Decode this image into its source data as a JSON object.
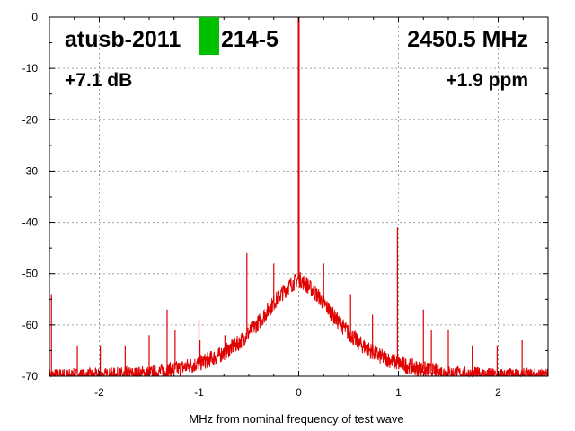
{
  "chart_data": {
    "type": "line",
    "xlabel": "MHz from nominal frequency of test wave",
    "ylabel": "",
    "xlim": [
      -2.5,
      2.5
    ],
    "ylim": [
      -70,
      0
    ],
    "x_ticks": [
      -2,
      -1,
      0,
      1,
      2
    ],
    "x_tick_labels": [
      "-2",
      "-1",
      "0",
      "1",
      "2"
    ],
    "y_ticks": [
      0,
      -10,
      -20,
      -30,
      -40,
      -50,
      -60,
      -70
    ],
    "y_tick_labels": [
      "0",
      "-10",
      "-20",
      "-30",
      "-40",
      "-50",
      "-60",
      "-70"
    ],
    "grid": true,
    "series_color": "#e00000",
    "marker_color": "#00c000",
    "annotations": {
      "device": "atusb-2011",
      "device_suffix": "214-5",
      "frequency": "2450.5 MHz",
      "gain": "+7.1 dB",
      "offset": "+1.9 ppm"
    },
    "series": [
      {
        "noise_floor": {
          "x": [
            -2.5,
            -2.0,
            -1.5,
            -1.2,
            -1.0,
            -0.8,
            -0.6,
            -0.4,
            -0.2,
            -0.1,
            0.0,
            0.1,
            0.2,
            0.4,
            0.6,
            0.8,
            1.0,
            1.2,
            1.5,
            2.0,
            2.5
          ],
          "y": [
            -70,
            -70,
            -69.5,
            -68.5,
            -67.5,
            -66,
            -63.5,
            -59.5,
            -54.5,
            -52.5,
            -51,
            -52.5,
            -54.5,
            -59.5,
            -63.5,
            -66,
            -67.5,
            -68.5,
            -69.5,
            -70,
            -70
          ]
        },
        "peak": {
          "x": 0.0,
          "y": 0
        },
        "spurs": [
          {
            "x": -2.48,
            "y": -54
          },
          {
            "x": -2.22,
            "y": -64
          },
          {
            "x": -1.99,
            "y": -64
          },
          {
            "x": -1.74,
            "y": -64
          },
          {
            "x": -1.5,
            "y": -62
          },
          {
            "x": -1.32,
            "y": -57
          },
          {
            "x": -1.24,
            "y": -61
          },
          {
            "x": -1.0,
            "y": -59
          },
          {
            "x": -0.99,
            "y": -63
          },
          {
            "x": -0.74,
            "y": -62
          },
          {
            "x": -0.52,
            "y": -46
          },
          {
            "x": -0.25,
            "y": -48
          },
          {
            "x": 0.25,
            "y": -48
          },
          {
            "x": 0.52,
            "y": -54
          },
          {
            "x": 0.74,
            "y": -58
          },
          {
            "x": 0.99,
            "y": -41
          },
          {
            "x": 1.25,
            "y": -57
          },
          {
            "x": 1.33,
            "y": -61
          },
          {
            "x": 1.5,
            "y": -61
          },
          {
            "x": 1.74,
            "y": -64
          },
          {
            "x": 1.99,
            "y": -64
          },
          {
            "x": 2.24,
            "y": -63
          }
        ]
      }
    ]
  }
}
